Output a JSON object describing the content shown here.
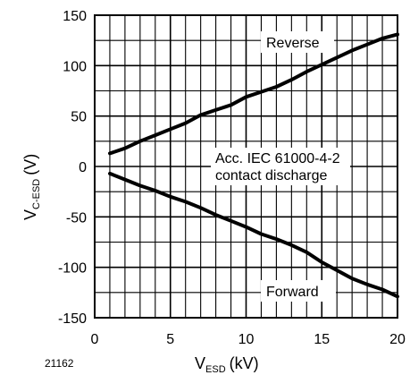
{
  "figure_id": "21162",
  "chart_data": {
    "type": "line",
    "title": "",
    "xlabel": {
      "main": "V",
      "sub": "ESD",
      "unit": "(kV)"
    },
    "ylabel": {
      "main": "V",
      "sub": "C-ESD",
      "unit": "(V)"
    },
    "xlim": [
      0,
      20
    ],
    "ylim": [
      -150,
      150
    ],
    "x_ticks": [
      0,
      5,
      10,
      15,
      20
    ],
    "y_ticks": [
      150,
      100,
      50,
      0,
      -50,
      -100,
      -150
    ],
    "x_minor_step": 1,
    "y_minor_step": 25,
    "grid": true,
    "annotations": [
      {
        "text": "Reverse"
      },
      {
        "text": "Acc. IEC 61000-4-2"
      },
      {
        "text": "contact discharge"
      },
      {
        "text": "Forward"
      }
    ],
    "series": [
      {
        "key": "reverse",
        "x": [
          1,
          2,
          3,
          4,
          5,
          6,
          7,
          8,
          9,
          10,
          11,
          12,
          13,
          14,
          15,
          16,
          17,
          18,
          19,
          20
        ],
        "y": [
          13,
          18,
          25,
          31,
          37,
          43,
          51,
          56,
          61,
          69,
          74,
          79,
          86,
          94,
          101,
          108,
          115,
          121,
          127,
          131
        ]
      },
      {
        "key": "forward",
        "x": [
          1,
          2,
          3,
          4,
          5,
          6,
          7,
          8,
          9,
          10,
          11,
          12,
          13,
          14,
          15,
          16,
          17,
          18,
          19,
          20
        ],
        "y": [
          -7,
          -13,
          -19,
          -24,
          -30,
          -35,
          -41,
          -48,
          -54,
          -60,
          -67,
          -72,
          -78,
          -85,
          -95,
          -103,
          -111,
          -117,
          -122,
          -129
        ]
      }
    ]
  }
}
